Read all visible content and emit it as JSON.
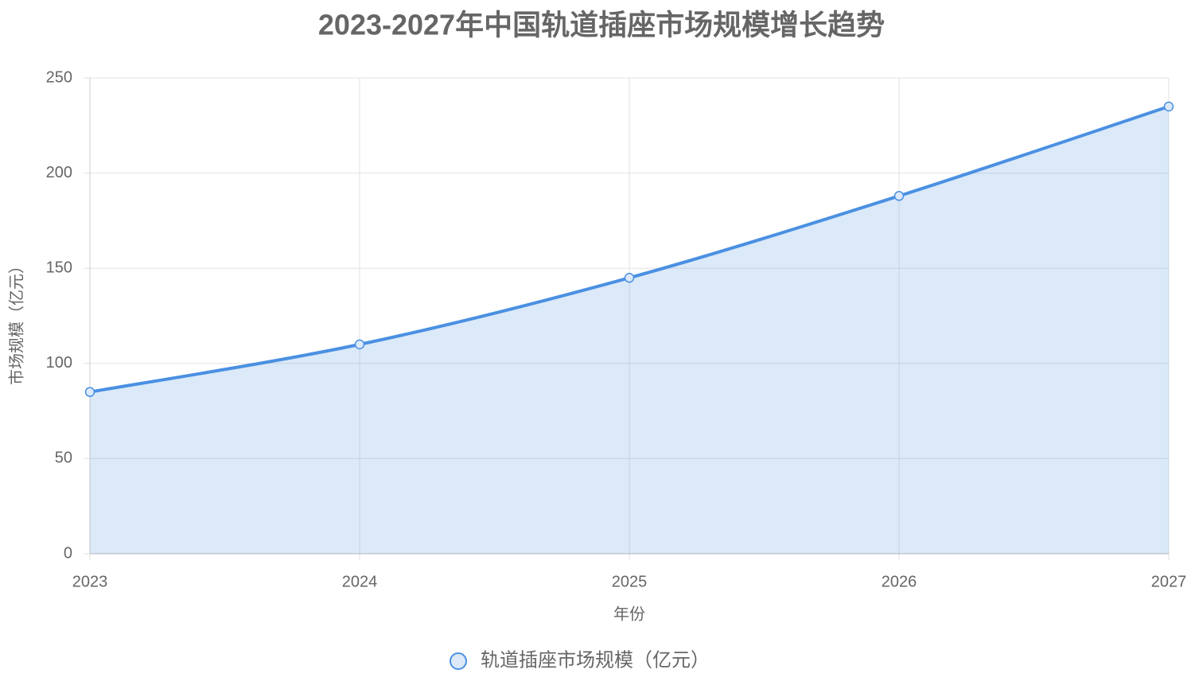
{
  "chart_data": {
    "type": "line",
    "title": "2023-2027年中国轨道插座市场规模增长趋势",
    "x_label": "年份",
    "y_label": "市场规模（亿元）",
    "categories": [
      "2023",
      "2024",
      "2025",
      "2026",
      "2027"
    ],
    "series": [
      {
        "name": "轨道插座市场规模（亿元）",
        "color": "#4a90e2",
        "values": [
          85,
          110,
          145,
          188,
          235
        ]
      }
    ],
    "ylim": [
      0,
      250
    ],
    "yticks": [
      0,
      50,
      100,
      150,
      200,
      250
    ],
    "grid": true,
    "area": true,
    "legend": "bottom"
  }
}
